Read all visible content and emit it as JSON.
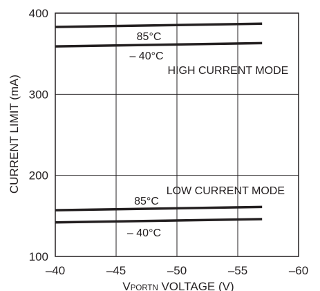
{
  "chart_data": {
    "type": "line",
    "xlabel_prefix": "V",
    "xlabel_subscript": "PORTN",
    "xlabel_suffix": " VOLTAGE (V)",
    "ylabel": "CURRENT LIMIT (mA)",
    "xlim": [
      -40,
      -60
    ],
    "ylim": [
      100,
      400
    ],
    "x_ticks": [
      -40,
      -45,
      -50,
      -55,
      -60
    ],
    "x_tick_labels": [
      "–40",
      "–45",
      "–50",
      "–55",
      "–60"
    ],
    "y_ticks": [
      100,
      200,
      300,
      400
    ],
    "y_tick_labels": [
      "100",
      "200",
      "300",
      "400"
    ],
    "grid": true,
    "series": [
      {
        "name": "85°C",
        "x": [
          -40,
          -57
        ],
        "y": [
          383,
          387
        ]
      },
      {
        "name": "–40°C",
        "x": [
          -40,
          -57
        ],
        "y": [
          359,
          363
        ]
      },
      {
        "name": "85°C",
        "x": [
          -40,
          -57
        ],
        "y": [
          157,
          161
        ]
      },
      {
        "name": "–40°C",
        "x": [
          -40,
          -57
        ],
        "y": [
          142,
          146
        ]
      }
    ],
    "annotations": [
      {
        "text": "85°C",
        "x": -47.7,
        "y": 372
      },
      {
        "text": "– 40°C",
        "x": -47.5,
        "y": 348
      },
      {
        "text": "HIGH CURRENT MODE",
        "x": -54.2,
        "y": 330
      },
      {
        "text": "LOW CURRENT MODE",
        "x": -54.0,
        "y": 182
      },
      {
        "text": "85°C",
        "x": -47.5,
        "y": 169
      },
      {
        "text": "– 40°C",
        "x": -47.3,
        "y": 130
      }
    ],
    "line_color": "#231f20"
  }
}
